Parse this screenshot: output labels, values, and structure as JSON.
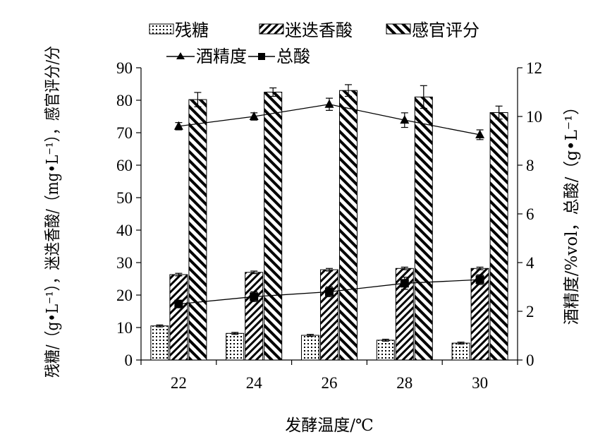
{
  "chart_data": {
    "type": "bar",
    "categories": [
      "22",
      "24",
      "26",
      "28",
      "30"
    ],
    "xlabel": "发酵温度/℃",
    "ylabel_left": "残糖/（g•L⁻¹），迷迭香酸/（mg•L⁻¹），感官评分/分",
    "ylabel_right": "酒精度/%vol，总酸/（g•L⁻¹）",
    "ylim_left": [
      0,
      90
    ],
    "ylim_right": [
      0,
      12
    ],
    "yticks_left": [
      "0",
      "10",
      "20",
      "30",
      "40",
      "50",
      "60",
      "70",
      "80",
      "90"
    ],
    "yticks_right": [
      "0",
      "2",
      "4",
      "6",
      "8",
      "10",
      "12"
    ],
    "grid": false,
    "legend_position": "top",
    "bar_series": [
      {
        "name": "残糖",
        "axis": "left",
        "pattern": "dots",
        "values": [
          10.5,
          8.2,
          7.6,
          6.1,
          5.2
        ],
        "errors": [
          0.3,
          0.3,
          0.3,
          0.3,
          0.3
        ]
      },
      {
        "name": "迷迭香酸",
        "axis": "left",
        "pattern": "diagonal-up",
        "values": [
          26.3,
          27.0,
          27.8,
          28.2,
          28.2
        ],
        "errors": [
          0.4,
          0.4,
          0.4,
          0.4,
          0.4
        ]
      },
      {
        "name": "感官评分",
        "axis": "left",
        "pattern": "diagonal-down",
        "values": [
          80.2,
          82.5,
          83.0,
          81.0,
          76.2
        ],
        "errors": [
          2.2,
          1.3,
          1.8,
          3.5,
          2.0
        ]
      }
    ],
    "line_series": [
      {
        "name": "酒精度",
        "axis": "right",
        "marker": "triangle",
        "values": [
          9.6,
          10.0,
          10.5,
          9.85,
          9.25
        ],
        "errors": [
          0.15,
          0.15,
          0.25,
          0.3,
          0.2
        ]
      },
      {
        "name": "总酸",
        "axis": "right",
        "marker": "square",
        "values": [
          2.3,
          2.6,
          2.8,
          3.15,
          3.3
        ],
        "errors": [
          0.15,
          0.2,
          0.2,
          0.25,
          0.2
        ]
      }
    ]
  }
}
